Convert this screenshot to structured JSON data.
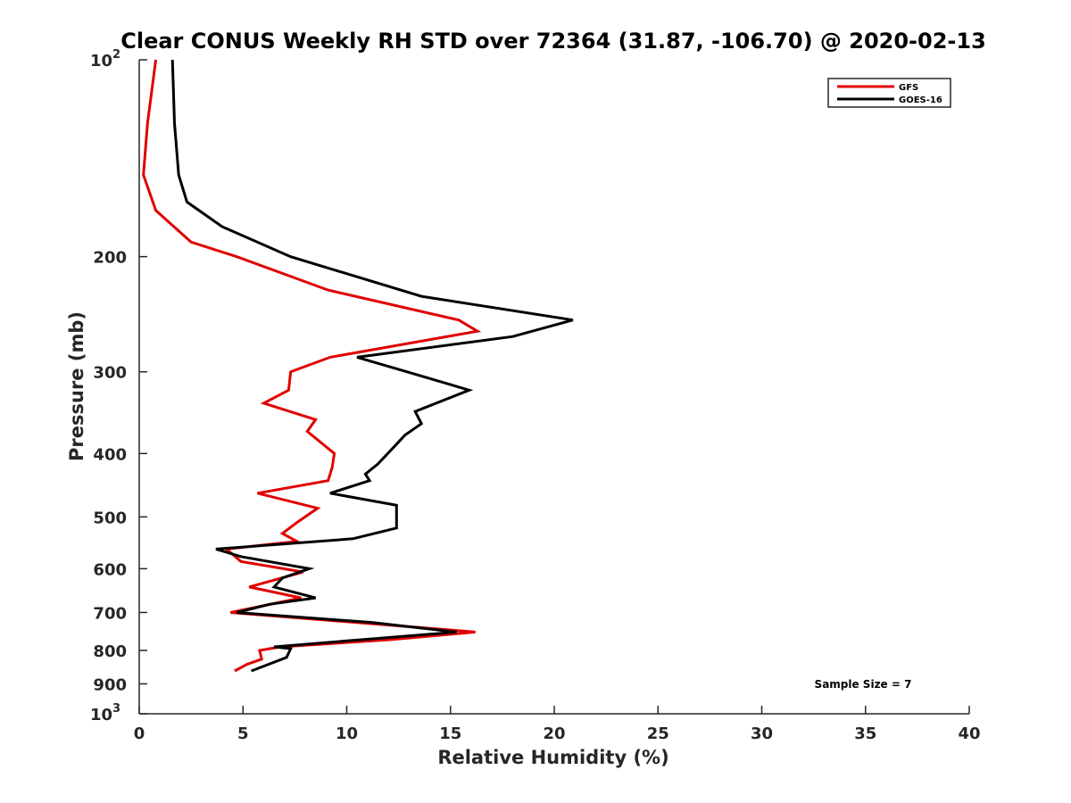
{
  "chart_data": {
    "type": "line",
    "title": "Clear CONUS Weekly RH STD over 72364 (31.87, -106.70) @ 2020-02-13",
    "xlabel": "Relative Humidity (%)",
    "ylabel": "Pressure (mb)",
    "xlim": [
      0,
      40
    ],
    "ylim": [
      100,
      1000
    ],
    "y_scale": "log",
    "y_reversed": true,
    "grid": false,
    "legend_position": "top-right",
    "annotation": "Sample Size = 7",
    "x_ticks": [
      0,
      5,
      10,
      15,
      20,
      25,
      30,
      35,
      40
    ],
    "y_ticks": [
      {
        "value": 100,
        "base": "10",
        "exp": "2"
      },
      {
        "value": 200,
        "label": "200"
      },
      {
        "value": 300,
        "label": "300"
      },
      {
        "value": 400,
        "label": "400"
      },
      {
        "value": 500,
        "label": "500"
      },
      {
        "value": 600,
        "label": "600"
      },
      {
        "value": 700,
        "label": "700"
      },
      {
        "value": 800,
        "label": "800"
      },
      {
        "value": 900,
        "label": "900"
      },
      {
        "value": 1000,
        "base": "10",
        "exp": "3"
      }
    ],
    "series": [
      {
        "name": "GFS",
        "color": "#e00000",
        "points": [
          [
            0.8,
            100
          ],
          [
            0.4,
            125
          ],
          [
            0.2,
            150
          ],
          [
            0.8,
            170
          ],
          [
            2.5,
            190
          ],
          [
            4.7,
            200
          ],
          [
            9.1,
            225
          ],
          [
            15.4,
            250
          ],
          [
            16.3,
            260
          ],
          [
            9.2,
            285
          ],
          [
            7.3,
            300
          ],
          [
            7.2,
            320
          ],
          [
            6.0,
            335
          ],
          [
            8.5,
            355
          ],
          [
            8.1,
            370
          ],
          [
            9.4,
            400
          ],
          [
            9.3,
            420
          ],
          [
            9.1,
            440
          ],
          [
            5.7,
            460
          ],
          [
            8.6,
            485
          ],
          [
            7.6,
            510
          ],
          [
            6.9,
            530
          ],
          [
            7.6,
            545
          ],
          [
            4.2,
            560
          ],
          [
            4.9,
            585
          ],
          [
            7.9,
            607
          ],
          [
            5.3,
            640
          ],
          [
            7.8,
            665
          ],
          [
            4.4,
            700
          ],
          [
            15.1,
            745
          ],
          [
            16.2,
            750
          ],
          [
            12.2,
            770
          ],
          [
            6.8,
            790
          ],
          [
            5.8,
            800
          ],
          [
            5.9,
            825
          ],
          [
            5.2,
            840
          ],
          [
            4.6,
            860
          ]
        ]
      },
      {
        "name": "GOES-16",
        "color": "#000000",
        "points": [
          [
            1.6,
            100
          ],
          [
            1.7,
            125
          ],
          [
            1.9,
            150
          ],
          [
            2.3,
            165
          ],
          [
            4.0,
            180
          ],
          [
            7.3,
            200
          ],
          [
            13.6,
            230
          ],
          [
            20.9,
            250
          ],
          [
            18.0,
            265
          ],
          [
            10.5,
            285
          ],
          [
            12.9,
            300
          ],
          [
            15.9,
            320
          ],
          [
            13.3,
            345
          ],
          [
            13.6,
            360
          ],
          [
            12.8,
            375
          ],
          [
            12.3,
            390
          ],
          [
            11.5,
            415
          ],
          [
            10.9,
            430
          ],
          [
            11.1,
            440
          ],
          [
            9.2,
            460
          ],
          [
            12.4,
            480
          ],
          [
            12.4,
            520
          ],
          [
            10.3,
            540
          ],
          [
            3.7,
            560
          ],
          [
            4.9,
            575
          ],
          [
            8.2,
            600
          ],
          [
            6.9,
            620
          ],
          [
            6.5,
            640
          ],
          [
            8.5,
            665
          ],
          [
            6.3,
            680
          ],
          [
            4.7,
            700
          ],
          [
            11.2,
            725
          ],
          [
            15.3,
            750
          ],
          [
            11.9,
            765
          ],
          [
            6.5,
            790
          ],
          [
            7.3,
            795
          ],
          [
            7.1,
            820
          ],
          [
            5.4,
            860
          ]
        ]
      }
    ]
  }
}
